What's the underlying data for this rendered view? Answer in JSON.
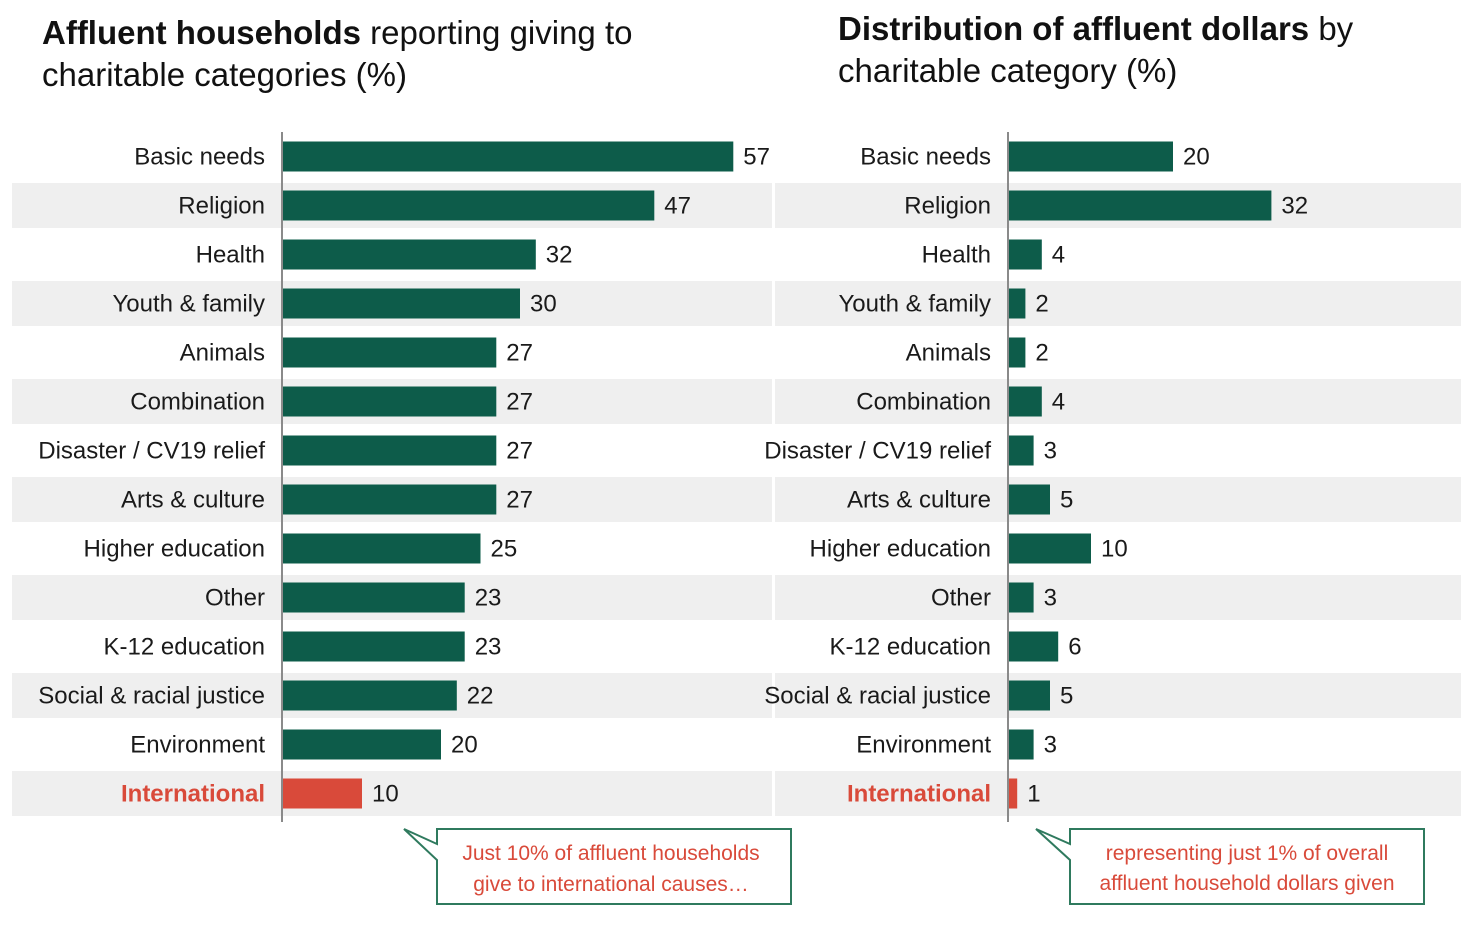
{
  "colors": {
    "bar": "#0d5c4a",
    "highlight": "#d94a3a",
    "stripe": "#efefef",
    "callout_border": "#2f7a5e"
  },
  "left_chart": {
    "title_bold": "Affluent households",
    "title_rest": " reporting giving to charitable categories (%)"
  },
  "right_chart": {
    "title_bold": "Distribution of affluent dollars",
    "title_rest": " by charitable category (%)"
  },
  "chart_data": [
    {
      "type": "bar",
      "orientation": "horizontal",
      "title": "Affluent households reporting giving to charitable categories (%)",
      "categories": [
        "Basic needs",
        "Religion",
        "Health",
        "Youth & family",
        "Animals",
        "Combination",
        "Disaster / CV19 relief",
        "Arts & culture",
        "Higher education",
        "Other",
        "K-12 education",
        "Social & racial justice",
        "Environment",
        "International"
      ],
      "values": [
        57,
        47,
        32,
        30,
        27,
        27,
        27,
        27,
        25,
        23,
        23,
        22,
        20,
        10
      ],
      "highlight": "International",
      "xlim": [
        0,
        57
      ],
      "annotation": "Just 10% of affluent households give to international causes…"
    },
    {
      "type": "bar",
      "orientation": "horizontal",
      "title": "Distribution of affluent dollars by charitable category (%)",
      "categories": [
        "Basic needs",
        "Religion",
        "Health",
        "Youth & family",
        "Animals",
        "Combination",
        "Disaster / CV19 relief",
        "Arts & culture",
        "Higher education",
        "Other",
        "K-12 education",
        "Social & racial justice",
        "Environment",
        "International"
      ],
      "values": [
        20,
        32,
        4,
        2,
        2,
        4,
        3,
        5,
        10,
        3,
        6,
        5,
        3,
        1
      ],
      "highlight": "International",
      "xlim": [
        0,
        32
      ],
      "annotation": "representing just 1% of overall affluent household dollars given"
    }
  ]
}
